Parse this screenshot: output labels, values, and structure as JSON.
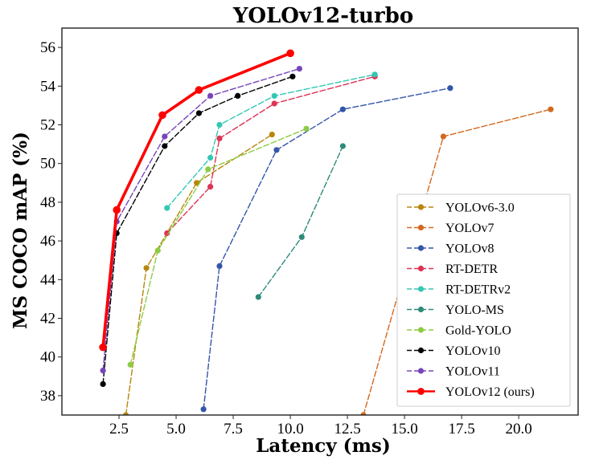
{
  "chart_data": {
    "type": "line",
    "title": "YOLOv12-turbo",
    "xlabel": "Latency (ms)",
    "ylabel": "MS COCO mAP (%)",
    "xlim": [
      0.0,
      22.6
    ],
    "ylim": [
      37.0,
      57.0
    ],
    "xticks": [
      2.5,
      5.0,
      7.5,
      10.0,
      12.5,
      15.0,
      17.5,
      20.0
    ],
    "xtick_labels": [
      "2.5",
      "5.0",
      "7.5",
      "10.0",
      "12.5",
      "15.0",
      "17.5",
      "20.0"
    ],
    "yticks": [
      38,
      40,
      42,
      44,
      46,
      48,
      50,
      52,
      54,
      56
    ],
    "ytick_labels": [
      "38",
      "40",
      "42",
      "44",
      "46",
      "48",
      "50",
      "52",
      "54",
      "56"
    ],
    "grid": false,
    "legend_position": "lower-right",
    "series": [
      {
        "name": "YOLOv6-3.0",
        "color": "#b8860b",
        "style": "dashed",
        "x": [
          2.8,
          3.7,
          5.9,
          9.2
        ],
        "y": [
          37.0,
          44.6,
          49.0,
          51.5
        ]
      },
      {
        "name": "YOLOv7",
        "color": "#d2691e",
        "style": "dashed",
        "x": [
          13.2,
          16.7,
          21.4
        ],
        "y": [
          37.0,
          51.4,
          52.8
        ]
      },
      {
        "name": "YOLOv8",
        "color": "#3355aa",
        "style": "dashed",
        "x": [
          6.2,
          6.9,
          9.4,
          12.3,
          17.0
        ],
        "y": [
          37.3,
          44.7,
          50.7,
          52.8,
          53.9
        ]
      },
      {
        "name": "RT-DETR",
        "color": "#dd3355",
        "style": "dashed",
        "x": [
          4.6,
          6.5,
          6.9,
          9.3,
          13.7
        ],
        "y": [
          46.4,
          48.8,
          51.3,
          53.1,
          54.5
        ]
      },
      {
        "name": "RT-DETRv2",
        "color": "#33c7b4",
        "style": "dashed",
        "x": [
          4.6,
          6.5,
          6.9,
          9.3,
          13.7
        ],
        "y": [
          47.7,
          50.3,
          52.0,
          53.5,
          54.6
        ]
      },
      {
        "name": "YOLO-MS",
        "color": "#2e8b7a",
        "style": "dashed",
        "x": [
          8.6,
          10.5,
          12.3
        ],
        "y": [
          43.1,
          46.2,
          50.9
        ]
      },
      {
        "name": "Gold-YOLO",
        "color": "#8ccc44",
        "style": "dashed",
        "x": [
          3.0,
          4.2,
          6.4,
          10.7
        ],
        "y": [
          39.6,
          45.5,
          49.7,
          51.8
        ]
      },
      {
        "name": "YOLOv10",
        "color": "#000000",
        "style": "dashed",
        "x": [
          1.8,
          2.4,
          4.5,
          6.0,
          7.7,
          10.1
        ],
        "y": [
          38.6,
          46.4,
          50.9,
          52.6,
          53.5,
          54.5
        ]
      },
      {
        "name": "YOLOv11",
        "color": "#7744bb",
        "style": "dashed",
        "x": [
          1.8,
          2.4,
          4.5,
          6.5,
          10.4
        ],
        "y": [
          39.3,
          47.0,
          51.4,
          53.5,
          54.9
        ]
      },
      {
        "name": "YOLOv12 (ours)",
        "color": "#ff0000",
        "style": "solid",
        "x": [
          1.8,
          2.4,
          4.4,
          6.0,
          10.0
        ],
        "y": [
          40.5,
          47.6,
          52.5,
          53.8,
          55.7
        ]
      }
    ]
  }
}
